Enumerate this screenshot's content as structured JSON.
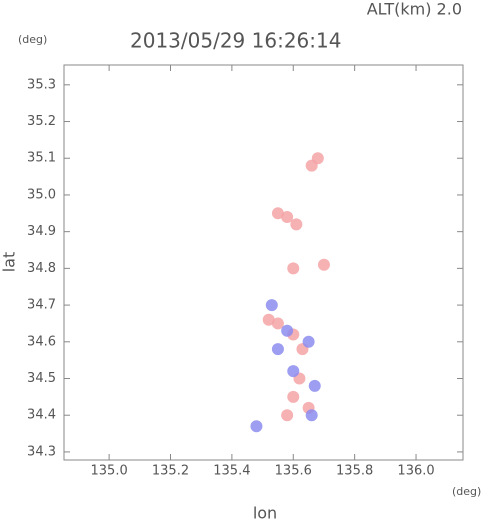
{
  "chart_data": {
    "type": "scatter",
    "header": "ALT(km) 2.0",
    "title": "2013/05/29 16:26:14",
    "y_unit": "(deg)",
    "x_unit": "(deg)",
    "xlabel": "lon",
    "ylabel": "lat",
    "xlim": [
      134.853,
      136.153
    ],
    "ylim": [
      34.278,
      35.354
    ],
    "xticks": [
      {
        "value": 135,
        "label": "135.0"
      },
      135.2,
      135.4,
      135.6,
      135.8,
      {
        "value": 136,
        "label": "136.0"
      }
    ],
    "yticks": [
      34.3,
      34.4,
      34.5,
      34.6,
      34.7,
      34.8,
      34.9,
      {
        "value": 35,
        "label": "35.0"
      },
      35.1,
      35.2,
      35.3
    ],
    "series": [
      {
        "color": "#f4a3a6",
        "x": [
          135.58,
          135.55,
          135.61,
          135.68,
          135.66,
          135.6,
          135.7,
          135.55,
          135.6,
          135.63,
          135.52,
          135.6,
          135.65,
          135.58,
          135.62
        ],
        "values": [
          34.94,
          34.95,
          34.92,
          35.1,
          35.08,
          34.8,
          34.81,
          34.65,
          34.62,
          34.58,
          34.66,
          34.45,
          34.42,
          34.4,
          34.5
        ]
      },
      {
        "color": "#8c8cef",
        "x": [
          135.48,
          135.58,
          135.65,
          135.55,
          135.67,
          135.6,
          135.53,
          135.66
        ],
        "values": [
          34.37,
          34.63,
          34.6,
          34.58,
          34.48,
          34.52,
          34.7,
          34.4
        ]
      }
    ]
  }
}
